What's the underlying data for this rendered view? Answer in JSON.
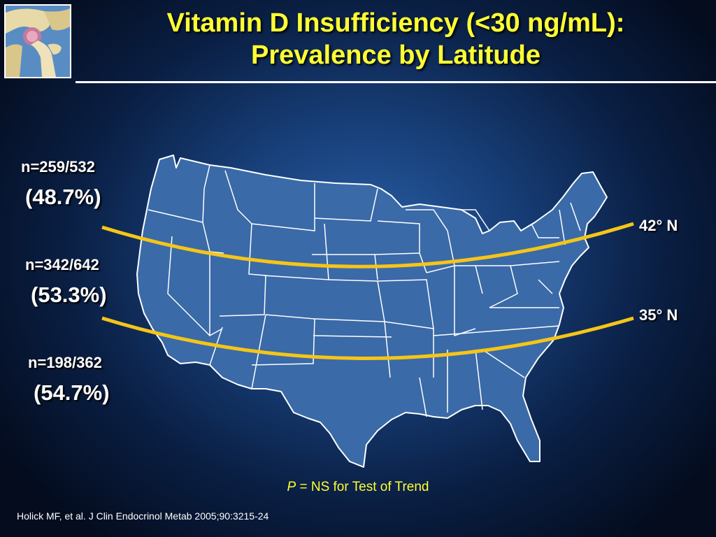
{
  "title": {
    "line1": "Vitamin D Insufficiency (<30 ng/mL):",
    "line2": "Prevalence by Latitude"
  },
  "logo": {
    "icon": "hip-joint-icon"
  },
  "regions": [
    {
      "n": "n=259/532",
      "pct": "(48.7%)"
    },
    {
      "n": "n=342/642",
      "pct": "(53.3%)"
    },
    {
      "n": "n=198/362",
      "pct": "(54.7%)"
    }
  ],
  "latitudes": [
    {
      "label": "42° N"
    },
    {
      "label": "35° N"
    }
  ],
  "footnote": {
    "p": "P",
    "rest": " = NS for Test of Trend"
  },
  "citation": "Holick MF, et al. J Clin Endocrinol Metab 2005;90:3215-24",
  "colors": {
    "title": "#ffff33",
    "map_fill": "#3a6aa8",
    "state_border": "#ffffff",
    "latitude_line": "#f5c518"
  }
}
